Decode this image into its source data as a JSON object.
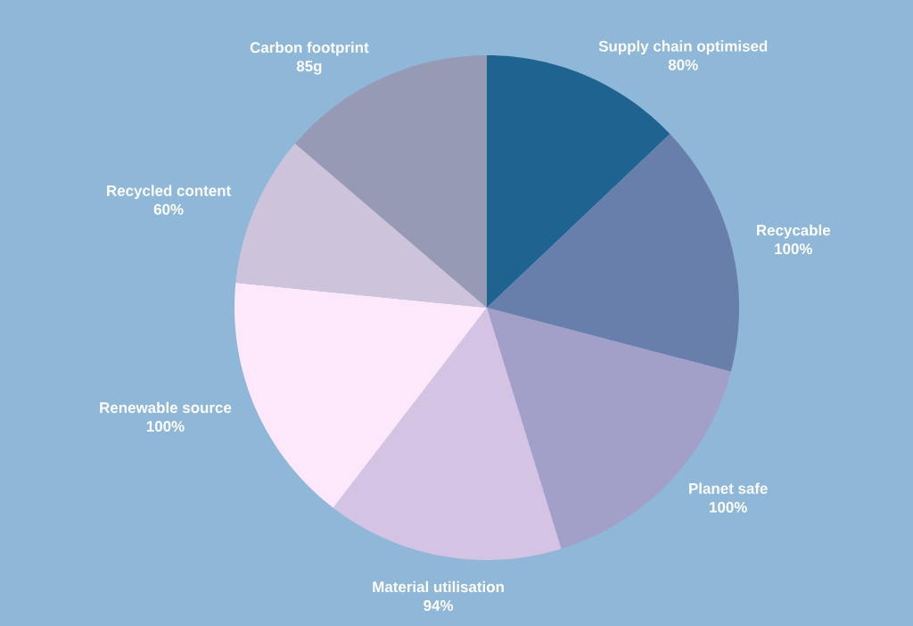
{
  "chart_data": {
    "type": "pie",
    "categories": [
      "Supply chain optimised",
      "Recycable",
      "Planet safe",
      "Material utilisation",
      "Renewable source",
      "Recycled content",
      "Carbon footprint"
    ],
    "values": [
      80,
      100,
      100,
      94,
      100,
      60,
      85
    ],
    "value_labels": [
      "80%",
      "100%",
      "100%",
      "94%",
      "100%",
      "60%",
      "85g"
    ],
    "colors": [
      "#1f6390",
      "#687fab",
      "#a29fc8",
      "#d5c3e3",
      "#fde8fb",
      "#cdc4db",
      "#979ab5"
    ]
  }
}
